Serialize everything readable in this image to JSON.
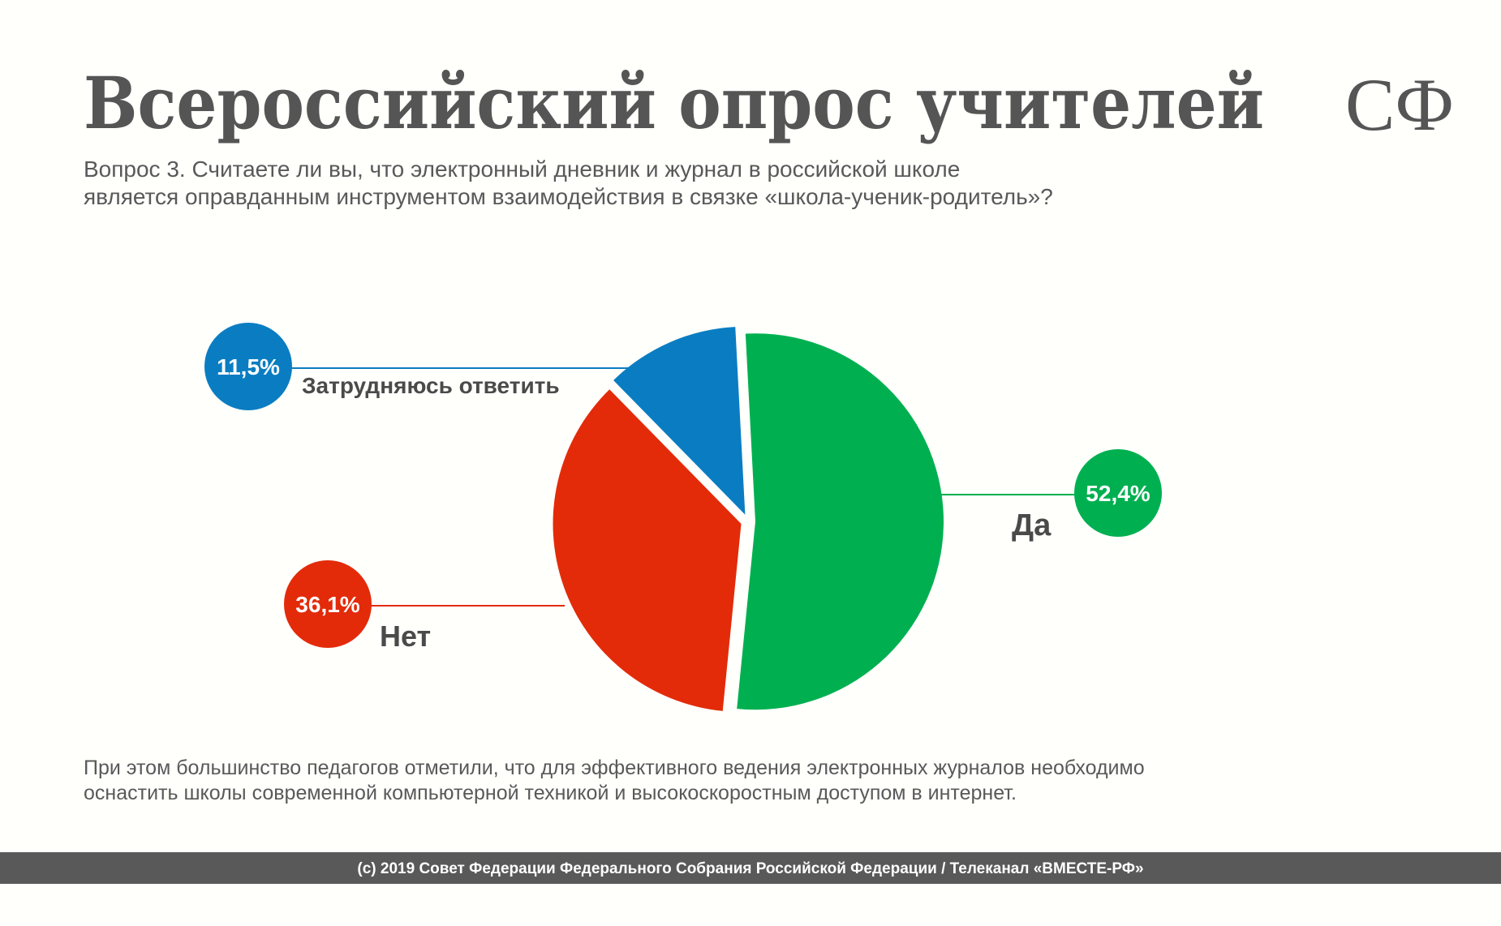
{
  "chart_data": {
    "type": "pie",
    "title": "Всероссийский опрос учителей",
    "logo": "СФ",
    "subtitle": [
      "Вопрос 3. Считаете ли вы, что электронный дневник и журнал в российской школе",
      "является оправданным инструментом взаимодействия в связке «школа-ученик-родитель»?"
    ],
    "categories": [
      "Да",
      "Нет",
      "Затрудняюсь ответить"
    ],
    "values": [
      52.4,
      36.1,
      11.5
    ],
    "value_labels": [
      "52,4%",
      "36,1%",
      "11,5%"
    ],
    "colors": [
      "#00b050",
      "#e32b0a",
      "#0a7dc2"
    ],
    "footnote": [
      "При этом большинство педагогов отметили, что для эффективного ведения электронных журналов необходимо",
      "оснастить школы современной компьютерной техникой и высокоскоростным доступом в интернет."
    ],
    "source": "(с) 2019 Совет Федерации Федерального Собрания Российской Федерации / Телеканал «ВМЕСТЕ-РФ»"
  }
}
